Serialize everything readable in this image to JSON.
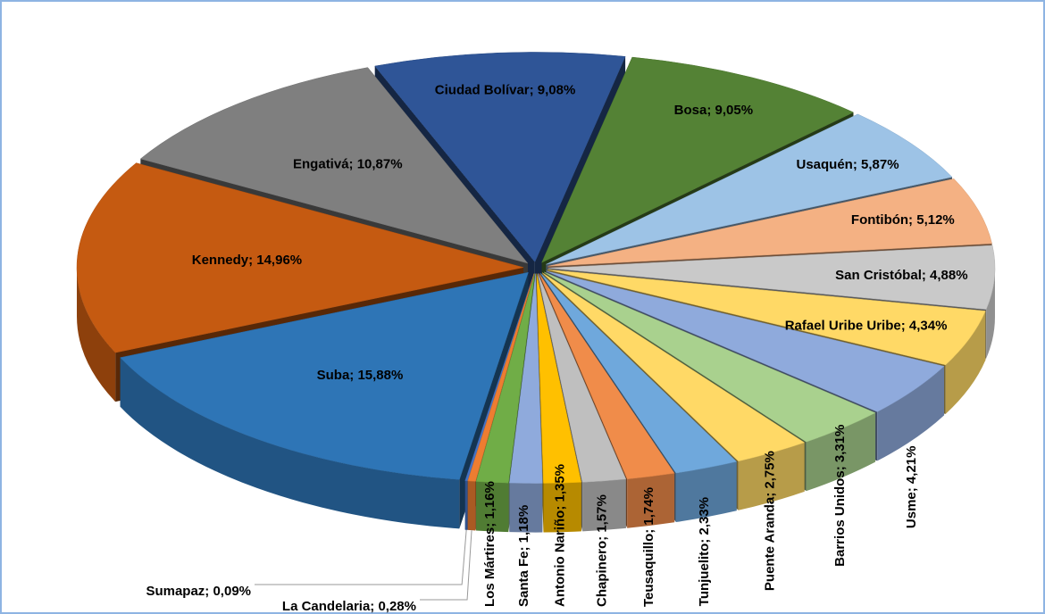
{
  "chart_data": {
    "type": "pie3d",
    "values": [
      9.08,
      9.05,
      5.87,
      5.12,
      4.88,
      4.34,
      4.21,
      3.31,
      2.75,
      2.33,
      1.74,
      1.57,
      1.35,
      1.18,
      1.16,
      0.28,
      0.09,
      15.88,
      14.96,
      10.87
    ],
    "value_labels": [
      "Ciudad Bolívar; 9,08%",
      "Bosa; 9,05%",
      "Usaquén; 5,87%",
      "Fontibón; 5,12%",
      "San Cristóbal; 4,88%",
      "Rafael Uribe Uribe; 4,34%",
      "Usme; 4,21%",
      "Barrios Unidos; 3,31%",
      "Puente Aranda; 2,75%",
      "Tunjuelito; 2,33%",
      "Teusaquillo; 1,74%",
      "Chapinero; 1,57%",
      "Antonio Nariño; 1,35%",
      "Santa Fe; 1,18%",
      "Los Mártires; 1,16%",
      "La Candelaria; 0,28%",
      "Sumapaz; 0,09%",
      "Suba; 15,88%",
      "Kennedy; 14,96%",
      "Engativá; 10,87%"
    ],
    "colors": [
      "#2f5597",
      "#548235",
      "#9dc3e6",
      "#f4b183",
      "#c9c9c9",
      "#ffd966",
      "#8faadc",
      "#a9d18e",
      "#ffd966",
      "#6fa8dc",
      "#f08c4a",
      "#bfbfbf",
      "#ffc000",
      "#8faadc",
      "#70ad47",
      "#ed7d31",
      "#4472c4",
      "#2e75b6",
      "#c55a11",
      "#7f7f7f"
    ]
  }
}
